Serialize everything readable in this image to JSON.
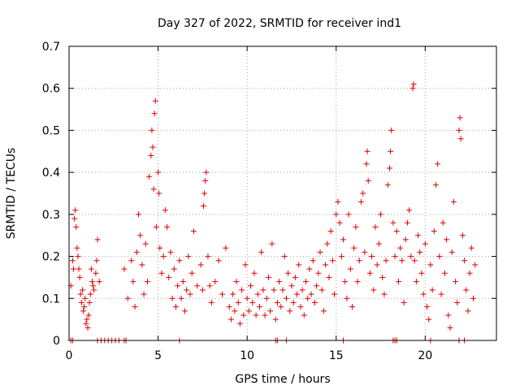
{
  "chart_data": {
    "type": "scatter",
    "title": "Day 327 of 2022, SRMTID for receiver ind1",
    "xlabel": "GPS time / hours",
    "ylabel": "SRMTID / TECUs",
    "xlim": [
      0,
      24
    ],
    "ylim": [
      0,
      0.7
    ],
    "x_ticks": [
      0,
      5,
      10,
      15,
      20
    ],
    "x_tick_labels": [
      "0",
      "5",
      "10",
      "15",
      "20"
    ],
    "y_ticks": [
      0,
      0.1,
      0.2,
      0.3,
      0.4,
      0.5,
      0.6,
      0.7
    ],
    "y_tick_labels": [
      "0",
      "0.1",
      "0.2",
      "0.3",
      "0.4",
      "0.5",
      "0.6",
      "0.7"
    ],
    "grid": true,
    "marker": "+",
    "color": "#e00000",
    "series": [
      {
        "name": "SRMTID",
        "points": [
          [
            0.1,
            0.0
          ],
          [
            0.2,
            0.0
          ],
          [
            1.6,
            0.0
          ],
          [
            1.8,
            0.0
          ],
          [
            2.0,
            0.0
          ],
          [
            2.2,
            0.0
          ],
          [
            2.4,
            0.0
          ],
          [
            2.6,
            0.0
          ],
          [
            2.8,
            0.0
          ],
          [
            3.1,
            0.0
          ],
          [
            3.2,
            0.0
          ],
          [
            6.2,
            0.0
          ],
          [
            11.6,
            0.0
          ],
          [
            11.7,
            0.0
          ],
          [
            12.2,
            0.0
          ],
          [
            15.4,
            0.0
          ],
          [
            18.2,
            0.0
          ],
          [
            18.3,
            0.0
          ],
          [
            18.4,
            0.0
          ],
          [
            20.3,
            0.0
          ],
          [
            21.9,
            0.0
          ],
          [
            22.2,
            0.0
          ],
          [
            0.1,
            0.13
          ],
          [
            0.2,
            0.19
          ],
          [
            0.3,
            0.29
          ],
          [
            0.35,
            0.31
          ],
          [
            0.4,
            0.27
          ],
          [
            0.45,
            0.22
          ],
          [
            0.5,
            0.2
          ],
          [
            0.55,
            0.17
          ],
          [
            0.6,
            0.15
          ],
          [
            0.65,
            0.11
          ],
          [
            0.7,
            0.09
          ],
          [
            0.8,
            0.07
          ],
          [
            0.9,
            0.1
          ],
          [
            1.0,
            0.05
          ],
          [
            1.05,
            0.03
          ],
          [
            1.1,
            0.06
          ],
          [
            1.2,
            0.11
          ],
          [
            1.3,
            0.14
          ],
          [
            1.4,
            0.12
          ],
          [
            1.5,
            0.16
          ],
          [
            1.55,
            0.19
          ],
          [
            1.6,
            0.24
          ],
          [
            1.7,
            0.14
          ],
          [
            0.25,
            0.17
          ],
          [
            0.75,
            0.12
          ],
          [
            0.85,
            0.08
          ],
          [
            0.95,
            0.04
          ],
          [
            1.15,
            0.09
          ],
          [
            1.25,
            0.17
          ],
          [
            1.35,
            0.13
          ],
          [
            3.1,
            0.17
          ],
          [
            3.3,
            0.1
          ],
          [
            3.5,
            0.19
          ],
          [
            3.6,
            0.14
          ],
          [
            3.7,
            0.08
          ],
          [
            3.8,
            0.21
          ],
          [
            3.9,
            0.3
          ],
          [
            4.0,
            0.25
          ],
          [
            4.1,
            0.18
          ],
          [
            4.2,
            0.11
          ],
          [
            4.3,
            0.23
          ],
          [
            4.4,
            0.14
          ],
          [
            4.5,
            0.39
          ],
          [
            4.6,
            0.44
          ],
          [
            4.65,
            0.5
          ],
          [
            4.7,
            0.46
          ],
          [
            4.75,
            0.36
          ],
          [
            4.8,
            0.54
          ],
          [
            4.85,
            0.57
          ],
          [
            4.9,
            0.27
          ],
          [
            5.0,
            0.4
          ],
          [
            5.05,
            0.35
          ],
          [
            5.1,
            0.22
          ],
          [
            5.2,
            0.16
          ],
          [
            5.3,
            0.2
          ],
          [
            5.4,
            0.31
          ],
          [
            5.5,
            0.27
          ],
          [
            5.6,
            0.15
          ],
          [
            5.7,
            0.21
          ],
          [
            5.8,
            0.1
          ],
          [
            5.9,
            0.17
          ],
          [
            6.0,
            0.08
          ],
          [
            6.1,
            0.13
          ],
          [
            6.2,
            0.19
          ],
          [
            6.3,
            0.1
          ],
          [
            6.4,
            0.14
          ],
          [
            6.5,
            0.07
          ],
          [
            6.6,
            0.12
          ],
          [
            6.7,
            0.2
          ],
          [
            6.8,
            0.11
          ],
          [
            6.9,
            0.16
          ],
          [
            7.0,
            0.26
          ],
          [
            7.2,
            0.13
          ],
          [
            7.4,
            0.18
          ],
          [
            7.5,
            0.12
          ],
          [
            7.55,
            0.32
          ],
          [
            7.6,
            0.35
          ],
          [
            7.65,
            0.38
          ],
          [
            7.7,
            0.4
          ],
          [
            7.8,
            0.2
          ],
          [
            7.9,
            0.13
          ],
          [
            8.0,
            0.09
          ],
          [
            8.2,
            0.14
          ],
          [
            8.4,
            0.19
          ],
          [
            8.6,
            0.11
          ],
          [
            8.8,
            0.22
          ],
          [
            9.0,
            0.08
          ],
          [
            9.1,
            0.05
          ],
          [
            9.2,
            0.11
          ],
          [
            9.3,
            0.07
          ],
          [
            9.4,
            0.14
          ],
          [
            9.5,
            0.09
          ],
          [
            9.6,
            0.04
          ],
          [
            9.7,
            0.12
          ],
          [
            9.8,
            0.06
          ],
          [
            9.9,
            0.18
          ],
          [
            10.0,
            0.1
          ],
          [
            10.1,
            0.07
          ],
          [
            10.2,
            0.13
          ],
          [
            10.3,
            0.09
          ],
          [
            10.4,
            0.16
          ],
          [
            10.5,
            0.06
          ],
          [
            10.6,
            0.11
          ],
          [
            10.7,
            0.08
          ],
          [
            10.8,
            0.21
          ],
          [
            10.9,
            0.12
          ],
          [
            11.0,
            0.06
          ],
          [
            11.1,
            0.1
          ],
          [
            11.2,
            0.15
          ],
          [
            11.3,
            0.07
          ],
          [
            11.4,
            0.23
          ],
          [
            11.5,
            0.12
          ],
          [
            11.6,
            0.05
          ],
          [
            11.7,
            0.09
          ],
          [
            11.8,
            0.14
          ],
          [
            11.9,
            0.08
          ],
          [
            12.0,
            0.12
          ],
          [
            12.1,
            0.2
          ],
          [
            12.2,
            0.1
          ],
          [
            12.3,
            0.16
          ],
          [
            12.4,
            0.07
          ],
          [
            12.5,
            0.13
          ],
          [
            12.6,
            0.09
          ],
          [
            12.7,
            0.15
          ],
          [
            12.8,
            0.11
          ],
          [
            12.9,
            0.18
          ],
          [
            13.0,
            0.08
          ],
          [
            13.1,
            0.12
          ],
          [
            13.2,
            0.06
          ],
          [
            13.3,
            0.14
          ],
          [
            13.4,
            0.1
          ],
          [
            13.5,
            0.17
          ],
          [
            13.6,
            0.11
          ],
          [
            13.7,
            0.19
          ],
          [
            13.8,
            0.09
          ],
          [
            13.9,
            0.13
          ],
          [
            14.0,
            0.16
          ],
          [
            14.1,
            0.21
          ],
          [
            14.2,
            0.12
          ],
          [
            14.3,
            0.07
          ],
          [
            14.4,
            0.18
          ],
          [
            14.5,
            0.23
          ],
          [
            14.6,
            0.15
          ],
          [
            14.7,
            0.26
          ],
          [
            14.8,
            0.19
          ],
          [
            14.9,
            0.11
          ],
          [
            15.0,
            0.3
          ],
          [
            15.1,
            0.33
          ],
          [
            15.2,
            0.28
          ],
          [
            15.3,
            0.2
          ],
          [
            15.4,
            0.24
          ],
          [
            15.5,
            0.14
          ],
          [
            15.6,
            0.1
          ],
          [
            15.7,
            0.3
          ],
          [
            15.8,
            0.17
          ],
          [
            15.9,
            0.08
          ],
          [
            16.0,
            0.22
          ],
          [
            16.1,
            0.27
          ],
          [
            16.2,
            0.14
          ],
          [
            16.3,
            0.19
          ],
          [
            16.4,
            0.33
          ],
          [
            16.5,
            0.35
          ],
          [
            16.6,
            0.21
          ],
          [
            16.7,
            0.42
          ],
          [
            16.75,
            0.45
          ],
          [
            16.8,
            0.38
          ],
          [
            16.9,
            0.16
          ],
          [
            17.0,
            0.2
          ],
          [
            17.1,
            0.12
          ],
          [
            17.2,
            0.27
          ],
          [
            17.3,
            0.18
          ],
          [
            17.4,
            0.23
          ],
          [
            17.5,
            0.3
          ],
          [
            17.6,
            0.15
          ],
          [
            17.7,
            0.11
          ],
          [
            17.8,
            0.19
          ],
          [
            17.9,
            0.37
          ],
          [
            18.0,
            0.41
          ],
          [
            18.05,
            0.45
          ],
          [
            18.1,
            0.5
          ],
          [
            18.2,
            0.28
          ],
          [
            18.3,
            0.2
          ],
          [
            18.4,
            0.26
          ],
          [
            18.5,
            0.14
          ],
          [
            18.6,
            0.22
          ],
          [
            18.7,
            0.19
          ],
          [
            18.8,
            0.09
          ],
          [
            18.9,
            0.24
          ],
          [
            19.0,
            0.28
          ],
          [
            19.1,
            0.31
          ],
          [
            19.2,
            0.2
          ],
          [
            19.3,
            0.6
          ],
          [
            19.35,
            0.61
          ],
          [
            19.4,
            0.19
          ],
          [
            19.5,
            0.14
          ],
          [
            19.6,
            0.25
          ],
          [
            19.7,
            0.21
          ],
          [
            19.8,
            0.16
          ],
          [
            19.9,
            0.11
          ],
          [
            20.0,
            0.23
          ],
          [
            20.1,
            0.08
          ],
          [
            20.2,
            0.05
          ],
          [
            20.3,
            0.18
          ],
          [
            20.4,
            0.12
          ],
          [
            20.5,
            0.26
          ],
          [
            20.6,
            0.37
          ],
          [
            20.7,
            0.42
          ],
          [
            20.8,
            0.2
          ],
          [
            20.9,
            0.11
          ],
          [
            21.0,
            0.28
          ],
          [
            21.1,
            0.16
          ],
          [
            21.2,
            0.24
          ],
          [
            21.3,
            0.06
          ],
          [
            21.4,
            0.03
          ],
          [
            21.5,
            0.21
          ],
          [
            21.6,
            0.33
          ],
          [
            21.7,
            0.14
          ],
          [
            21.8,
            0.09
          ],
          [
            21.9,
            0.5
          ],
          [
            21.95,
            0.53
          ],
          [
            22.0,
            0.48
          ],
          [
            22.1,
            0.25
          ],
          [
            22.2,
            0.19
          ],
          [
            22.3,
            0.12
          ],
          [
            22.4,
            0.07
          ],
          [
            22.5,
            0.16
          ],
          [
            22.6,
            0.22
          ],
          [
            22.7,
            0.1
          ],
          [
            22.8,
            0.18
          ]
        ]
      }
    ]
  }
}
